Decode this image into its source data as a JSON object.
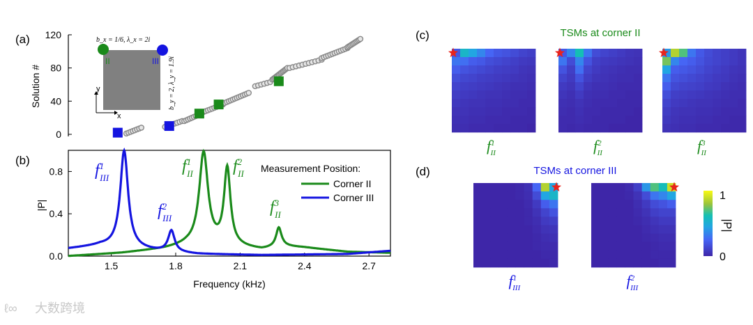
{
  "panel_labels": {
    "a": "(a)",
    "b": "(b)",
    "c": "(c)",
    "d": "(d)"
  },
  "colors": {
    "corner_ii": "#1a8a1a",
    "corner_iii": "#1414e0",
    "gray": "#888888",
    "star": "#e8241c"
  },
  "inset": {
    "bx_label": "b_x = 1/6, λ_x = 2i",
    "by_label": "b_y = 2, λ_y = 1.9i",
    "corner_ii": "II",
    "corner_iii": "III",
    "axis_x": "x",
    "axis_y": "y"
  },
  "chart_data": [
    {
      "id": "a",
      "type": "scatter",
      "title": "",
      "xlabel": "",
      "ylabel": "Solution #",
      "xlim": [
        1.3,
        2.8
      ],
      "ylim": [
        0,
        120
      ],
      "yticks": [
        "0",
        "40",
        "80",
        "120"
      ],
      "gray_runs": [
        {
          "x0": 1.57,
          "x1": 1.64,
          "y0": 1,
          "y1": 8
        },
        {
          "x0": 1.75,
          "x1": 1.83,
          "y0": 9,
          "y1": 16
        },
        {
          "x0": 1.84,
          "x1": 1.92,
          "y0": 16,
          "y1": 25
        },
        {
          "x0": 1.92,
          "x1": 2.02,
          "y0": 26,
          "y1": 36
        },
        {
          "x0": 2.02,
          "x1": 2.14,
          "y0": 37,
          "y1": 50
        },
        {
          "x0": 2.17,
          "x1": 2.24,
          "y0": 58,
          "y1": 63
        },
        {
          "x0": 2.25,
          "x1": 2.32,
          "y0": 66,
          "y1": 80
        },
        {
          "x0": 2.33,
          "x1": 2.48,
          "y0": 80,
          "y1": 90
        },
        {
          "x0": 2.48,
          "x1": 2.6,
          "y0": 92,
          "y1": 104
        },
        {
          "x0": 2.6,
          "x1": 2.66,
          "y0": 105,
          "y1": 115
        }
      ],
      "highlight_ii": [
        {
          "x": 1.91,
          "y": 25
        },
        {
          "x": 2.0,
          "y": 36
        },
        {
          "x": 2.28,
          "y": 64
        }
      ],
      "highlight_iii": [
        {
          "x": 1.53,
          "y": 2
        },
        {
          "x": 1.77,
          "y": 10
        }
      ]
    },
    {
      "id": "b",
      "type": "line",
      "title": "",
      "xlabel": "Frequency (kHz)",
      "ylabel": "|P|",
      "xlim": [
        1.3,
        2.8
      ],
      "ylim": [
        0,
        1
      ],
      "xticks": [
        "1.5",
        "1.8",
        "2.1",
        "2.4",
        "2.7"
      ],
      "yticks": [
        "0.0",
        "0.4",
        "0.8"
      ],
      "legend_title": "Measurement Position:",
      "series": [
        {
          "name": "Corner II",
          "peaks": [
            {
              "f": 1.93,
              "a": 0.88,
              "w": 0.025
            },
            {
              "f": 2.04,
              "a": 0.73,
              "w": 0.018
            },
            {
              "f": 2.28,
              "a": 0.18,
              "w": 0.015
            }
          ],
          "baseline": [
            [
              1.3,
              0.0
            ],
            [
              1.55,
              0.03
            ],
            [
              1.75,
              0.07
            ],
            [
              1.85,
              0.1
            ],
            [
              2.1,
              0.08
            ],
            [
              2.2,
              0.06
            ],
            [
              2.3,
              0.09
            ],
            [
              2.4,
              0.08
            ],
            [
              2.6,
              0.04
            ],
            [
              2.8,
              0.03
            ]
          ]
        },
        {
          "name": "Corner III",
          "peaks": [
            {
              "f": 1.56,
              "a": 0.92,
              "w": 0.022
            },
            {
              "f": 1.78,
              "a": 0.2,
              "w": 0.018
            }
          ],
          "baseline": [
            [
              1.3,
              0.07
            ],
            [
              1.45,
              0.1
            ],
            [
              1.7,
              0.05
            ],
            [
              1.9,
              0.02
            ],
            [
              2.2,
              0.01
            ],
            [
              2.6,
              0.02
            ],
            [
              2.8,
              0.05
            ]
          ]
        }
      ],
      "annotations": [
        {
          "text": "f",
          "sup": "1",
          "sub": "III",
          "series": "Corner III"
        },
        {
          "text": "f",
          "sup": "2",
          "sub": "III",
          "series": "Corner III"
        },
        {
          "text": "f",
          "sup": "1",
          "sub": "II",
          "series": "Corner II"
        },
        {
          "text": "f",
          "sup": "2",
          "sub": "II",
          "series": "Corner II"
        },
        {
          "text": "f",
          "sup": "3",
          "sub": "II",
          "series": "Corner II"
        }
      ]
    },
    {
      "id": "c",
      "type": "heatmap",
      "title": "TSMs at corner II",
      "maps": [
        {
          "label": "f",
          "sup": "1",
          "sub": "II",
          "corner": "top-left",
          "grid": [
            [
              0.2,
              0.55,
              0.45,
              0.35,
              0.25,
              0.2,
              0.18,
              0.15,
              0.12,
              0.1
            ],
            [
              0.3,
              0.28,
              0.22,
              0.2,
              0.16,
              0.14,
              0.12,
              0.1,
              0.08,
              0.07
            ],
            [
              0.22,
              0.18,
              0.16,
              0.14,
              0.12,
              0.1,
              0.09,
              0.08,
              0.06,
              0.05
            ],
            [
              0.16,
              0.13,
              0.12,
              0.1,
              0.09,
              0.08,
              0.07,
              0.06,
              0.05,
              0.04
            ],
            [
              0.12,
              0.1,
              0.09,
              0.08,
              0.07,
              0.06,
              0.05,
              0.04,
              0.04,
              0.03
            ],
            [
              0.09,
              0.08,
              0.07,
              0.06,
              0.05,
              0.05,
              0.04,
              0.03,
              0.03,
              0.02
            ],
            [
              0.07,
              0.06,
              0.05,
              0.05,
              0.04,
              0.04,
              0.03,
              0.03,
              0.02,
              0.02
            ],
            [
              0.05,
              0.05,
              0.04,
              0.04,
              0.03,
              0.03,
              0.02,
              0.02,
              0.02,
              0.01
            ],
            [
              0.04,
              0.04,
              0.03,
              0.03,
              0.02,
              0.02,
              0.02,
              0.01,
              0.01,
              0.01
            ],
            [
              0.03,
              0.03,
              0.02,
              0.02,
              0.02,
              0.01,
              0.01,
              0.01,
              0.01,
              0.0
            ]
          ]
        },
        {
          "label": "f",
          "sup": "2",
          "sub": "II",
          "corner": "top-left",
          "grid": [
            [
              0.2,
              0.35,
              0.62,
              0.3,
              0.15,
              0.12,
              0.1,
              0.08,
              0.06,
              0.05
            ],
            [
              0.3,
              0.15,
              0.35,
              0.18,
              0.1,
              0.08,
              0.07,
              0.06,
              0.05,
              0.04
            ],
            [
              0.18,
              0.1,
              0.28,
              0.12,
              0.08,
              0.06,
              0.05,
              0.04,
              0.03,
              0.03
            ],
            [
              0.12,
              0.08,
              0.18,
              0.09,
              0.06,
              0.05,
              0.04,
              0.03,
              0.03,
              0.02
            ],
            [
              0.08,
              0.06,
              0.12,
              0.06,
              0.04,
              0.04,
              0.03,
              0.02,
              0.02,
              0.02
            ],
            [
              0.06,
              0.04,
              0.08,
              0.04,
              0.03,
              0.03,
              0.02,
              0.02,
              0.01,
              0.01
            ],
            [
              0.04,
              0.03,
              0.05,
              0.03,
              0.02,
              0.02,
              0.02,
              0.01,
              0.01,
              0.01
            ],
            [
              0.03,
              0.02,
              0.04,
              0.02,
              0.02,
              0.01,
              0.01,
              0.01,
              0.01,
              0.0
            ],
            [
              0.02,
              0.02,
              0.03,
              0.02,
              0.01,
              0.01,
              0.01,
              0.01,
              0.0,
              0.0
            ],
            [
              0.02,
              0.01,
              0.02,
              0.01,
              0.01,
              0.01,
              0.0,
              0.0,
              0.0,
              0.0
            ]
          ]
        },
        {
          "label": "f",
          "sup": "3",
          "sub": "II",
          "corner": "top-left",
          "grid": [
            [
              0.4,
              0.85,
              0.7,
              0.3,
              0.2,
              0.15,
              0.12,
              0.1,
              0.08,
              0.06
            ],
            [
              0.75,
              0.35,
              0.25,
              0.22,
              0.18,
              0.14,
              0.12,
              0.1,
              0.08,
              0.06
            ],
            [
              0.45,
              0.22,
              0.2,
              0.18,
              0.15,
              0.12,
              0.1,
              0.08,
              0.06,
              0.05
            ],
            [
              0.3,
              0.18,
              0.16,
              0.14,
              0.12,
              0.1,
              0.08,
              0.07,
              0.05,
              0.04
            ],
            [
              0.22,
              0.14,
              0.12,
              0.11,
              0.1,
              0.08,
              0.07,
              0.05,
              0.04,
              0.03
            ],
            [
              0.16,
              0.1,
              0.09,
              0.08,
              0.07,
              0.06,
              0.05,
              0.04,
              0.03,
              0.03
            ],
            [
              0.12,
              0.08,
              0.07,
              0.06,
              0.05,
              0.05,
              0.04,
              0.03,
              0.03,
              0.02
            ],
            [
              0.09,
              0.06,
              0.05,
              0.05,
              0.04,
              0.04,
              0.03,
              0.02,
              0.02,
              0.02
            ],
            [
              0.07,
              0.05,
              0.04,
              0.04,
              0.03,
              0.03,
              0.02,
              0.02,
              0.01,
              0.01
            ],
            [
              0.05,
              0.04,
              0.03,
              0.03,
              0.02,
              0.02,
              0.02,
              0.01,
              0.01,
              0.01
            ]
          ]
        }
      ]
    },
    {
      "id": "d",
      "type": "heatmap",
      "title": "TSMs at corner III",
      "colorbar": {
        "label": "|P|",
        "min_label": "0",
        "max_label": "1"
      },
      "maps": [
        {
          "label": "f",
          "sup": "1",
          "sub": "III",
          "corner": "top-right",
          "grid": [
            [
              0.0,
              0.0,
              0.0,
              0.0,
              0.0,
              0.01,
              0.04,
              0.25,
              0.85,
              0.45
            ],
            [
              0.0,
              0.0,
              0.0,
              0.0,
              0.0,
              0.01,
              0.03,
              0.15,
              0.45,
              0.55
            ],
            [
              0.0,
              0.0,
              0.0,
              0.0,
              0.0,
              0.0,
              0.02,
              0.08,
              0.22,
              0.3
            ],
            [
              0.0,
              0.0,
              0.0,
              0.0,
              0.0,
              0.0,
              0.01,
              0.05,
              0.12,
              0.18
            ],
            [
              0.0,
              0.0,
              0.0,
              0.0,
              0.0,
              0.0,
              0.01,
              0.03,
              0.08,
              0.1
            ],
            [
              0.0,
              0.0,
              0.0,
              0.0,
              0.0,
              0.0,
              0.0,
              0.02,
              0.05,
              0.06
            ],
            [
              0.0,
              0.0,
              0.0,
              0.0,
              0.0,
              0.0,
              0.0,
              0.01,
              0.03,
              0.04
            ],
            [
              0.0,
              0.0,
              0.0,
              0.0,
              0.0,
              0.0,
              0.0,
              0.01,
              0.02,
              0.02
            ],
            [
              0.0,
              0.0,
              0.0,
              0.0,
              0.0,
              0.0,
              0.0,
              0.0,
              0.01,
              0.01
            ],
            [
              0.0,
              0.0,
              0.0,
              0.0,
              0.0,
              0.0,
              0.0,
              0.0,
              0.0,
              0.01
            ]
          ]
        },
        {
          "label": "f",
          "sup": "2",
          "sub": "III",
          "corner": "top-right",
          "grid": [
            [
              0.0,
              0.0,
              0.0,
              0.0,
              0.02,
              0.1,
              0.4,
              0.7,
              0.6,
              0.9
            ],
            [
              0.0,
              0.0,
              0.0,
              0.0,
              0.01,
              0.05,
              0.15,
              0.3,
              0.35,
              0.45
            ],
            [
              0.0,
              0.0,
              0.0,
              0.0,
              0.0,
              0.03,
              0.08,
              0.15,
              0.18,
              0.22
            ],
            [
              0.0,
              0.0,
              0.0,
              0.0,
              0.0,
              0.02,
              0.05,
              0.1,
              0.12,
              0.12
            ],
            [
              0.0,
              0.0,
              0.0,
              0.0,
              0.0,
              0.01,
              0.03,
              0.06,
              0.08,
              0.08
            ],
            [
              0.0,
              0.0,
              0.0,
              0.0,
              0.0,
              0.0,
              0.02,
              0.04,
              0.05,
              0.05
            ],
            [
              0.0,
              0.0,
              0.0,
              0.0,
              0.0,
              0.0,
              0.01,
              0.02,
              0.03,
              0.03
            ],
            [
              0.0,
              0.0,
              0.0,
              0.0,
              0.0,
              0.0,
              0.0,
              0.01,
              0.02,
              0.02
            ],
            [
              0.0,
              0.0,
              0.0,
              0.0,
              0.0,
              0.0,
              0.0,
              0.01,
              0.01,
              0.01
            ],
            [
              0.0,
              0.0,
              0.0,
              0.0,
              0.0,
              0.0,
              0.0,
              0.0,
              0.01,
              0.01
            ]
          ]
        }
      ]
    }
  ],
  "watermark": "大数跨境"
}
